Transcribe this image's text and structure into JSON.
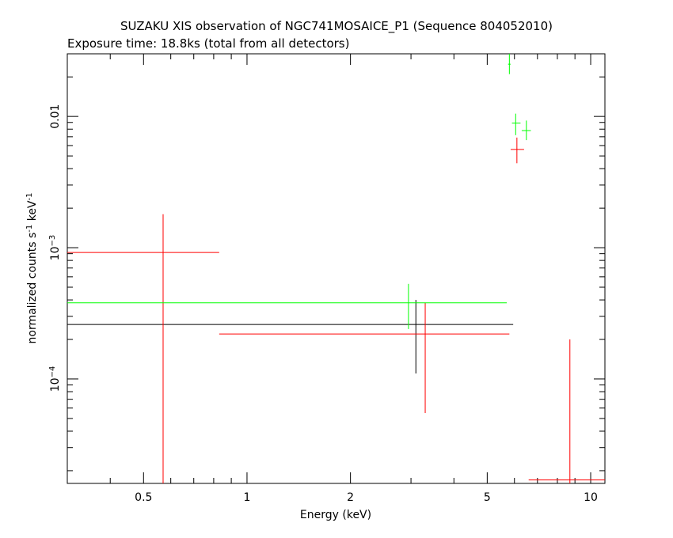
{
  "chart_data": {
    "type": "scatter",
    "title": "SUZAKU XIS observation of NGC741MOSAICE_P1 (Sequence 804052010)",
    "subtitle": "Exposure time: 18.8ks (total from all detectors)",
    "xlabel": "Energy (keV)",
    "ylabel": {
      "prefix": "normalized counts s",
      "exp1": "-1",
      "middle": " keV",
      "exp2": "-1"
    },
    "xscale": "log",
    "yscale": "log",
    "xlim": [
      0.3,
      11.0
    ],
    "ylim": [
      1.6e-05,
      0.03
    ],
    "x_ticks": [
      {
        "value": 0.5,
        "label": "0.5"
      },
      {
        "value": 1,
        "label": "1"
      },
      {
        "value": 2,
        "label": "2"
      },
      {
        "value": 5,
        "label": "5"
      },
      {
        "value": 10,
        "label": "10"
      }
    ],
    "y_ticks": [
      {
        "value": 0.0001,
        "base": "10",
        "exp": "−4"
      },
      {
        "value": 0.001,
        "base": "10",
        "exp": "−3"
      },
      {
        "value": 0.01,
        "label": "0.01"
      }
    ],
    "grid": false,
    "series": [
      {
        "color": "#000000",
        "points": [
          {
            "x": 3.1,
            "xlo": 0.3,
            "xhi": 5.95,
            "y": 0.00026,
            "ylo": 0.00011,
            "yhi": 0.0004
          }
        ]
      },
      {
        "color": "#ff0000",
        "points": [
          {
            "x": 0.57,
            "xlo": 0.3,
            "xhi": 0.83,
            "y": 0.00092,
            "ylo": 1.6e-05,
            "yhi": 0.0018
          },
          {
            "x": 3.3,
            "xlo": 0.83,
            "xhi": 5.8,
            "y": 0.00022,
            "ylo": 5.5e-05,
            "yhi": 0.00038
          },
          {
            "x": 6.1,
            "xlo": 5.85,
            "xhi": 6.4,
            "y": 0.0056,
            "ylo": 0.0044,
            "yhi": 0.0069
          },
          {
            "x": 8.7,
            "xlo": 6.6,
            "xhi": 11.0,
            "y": 1.7e-05,
            "ylo": 1.6e-05,
            "yhi": 0.0002
          }
        ]
      },
      {
        "color": "#00ff00",
        "points": [
          {
            "x": 2.95,
            "xlo": 0.3,
            "xhi": 5.7,
            "y": 0.00038,
            "ylo": 0.00024,
            "yhi": 0.00053
          },
          {
            "x": 5.8,
            "xlo": 5.75,
            "xhi": 5.85,
            "y": 0.025,
            "ylo": 0.021,
            "yhi": 0.03
          },
          {
            "x": 6.05,
            "xlo": 5.9,
            "xhi": 6.25,
            "y": 0.0089,
            "ylo": 0.0072,
            "yhi": 0.0105
          },
          {
            "x": 6.5,
            "xlo": 6.3,
            "xhi": 6.7,
            "y": 0.0078,
            "ylo": 0.0066,
            "yhi": 0.0093
          }
        ]
      }
    ]
  }
}
